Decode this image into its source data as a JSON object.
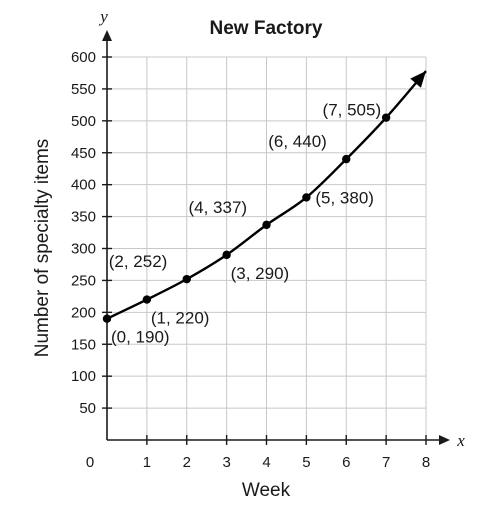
{
  "chart_data": {
    "type": "line",
    "title": "New Factory",
    "xlabel": "Week",
    "ylabel": "Number of specialty items",
    "x_axis_letter": "x",
    "y_axis_letter": "y",
    "xlim": [
      0,
      8
    ],
    "ylim": [
      0,
      600
    ],
    "x_ticks": [
      {
        "value": 0,
        "label": "0"
      },
      {
        "value": 1,
        "label": "1"
      },
      {
        "value": 2,
        "label": "2"
      },
      {
        "value": 3,
        "label": "3"
      },
      {
        "value": 4,
        "label": "4"
      },
      {
        "value": 5,
        "label": "5"
      },
      {
        "value": 6,
        "label": "6"
      },
      {
        "value": 7,
        "label": "7"
      },
      {
        "value": 8,
        "label": "8"
      }
    ],
    "y_ticks": [
      {
        "value": 50,
        "label": "50"
      },
      {
        "value": 100,
        "label": "100"
      },
      {
        "value": 150,
        "label": "150"
      },
      {
        "value": 200,
        "label": "200"
      },
      {
        "value": 250,
        "label": "250"
      },
      {
        "value": 300,
        "label": "300"
      },
      {
        "value": 350,
        "label": "350"
      },
      {
        "value": 400,
        "label": "400"
      },
      {
        "value": 450,
        "label": "450"
      },
      {
        "value": 500,
        "label": "500"
      },
      {
        "value": 550,
        "label": "550"
      },
      {
        "value": 600,
        "label": "600"
      }
    ],
    "grid": true,
    "points": [
      {
        "x": 0,
        "y": 190,
        "label": "(0, 190)",
        "label_side": "below-right"
      },
      {
        "x": 1,
        "y": 220,
        "label": "(1, 220)",
        "label_side": "below-right"
      },
      {
        "x": 2,
        "y": 252,
        "label": "(2, 252)",
        "label_side": "above-left"
      },
      {
        "x": 3,
        "y": 290,
        "label": "(3, 290)",
        "label_side": "below-right"
      },
      {
        "x": 4,
        "y": 337,
        "label": "(4, 337)",
        "label_side": "above-left"
      },
      {
        "x": 5,
        "y": 380,
        "label": "(5, 380)",
        "label_side": "right"
      },
      {
        "x": 6,
        "y": 440,
        "label": "(6, 440)",
        "label_side": "above-left"
      },
      {
        "x": 7,
        "y": 505,
        "label": "(7, 505)",
        "label_side": "left"
      }
    ],
    "curve_end": {
      "x": 8,
      "y": 578
    },
    "curve_arrow": true
  }
}
